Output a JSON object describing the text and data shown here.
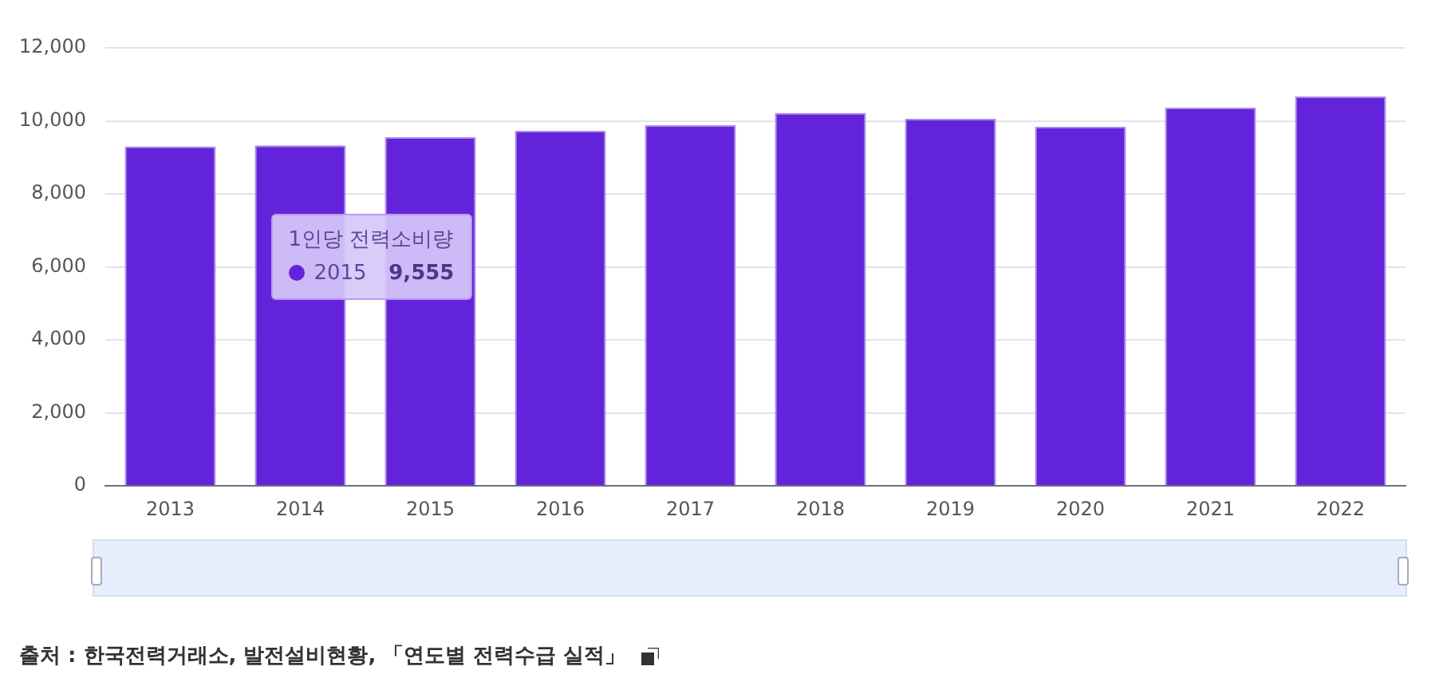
{
  "chart_data": {
    "type": "bar",
    "categories": [
      "2013",
      "2014",
      "2015",
      "2016",
      "2017",
      "2018",
      "2019",
      "2020",
      "2021",
      "2022"
    ],
    "series": [
      {
        "name": "1인당 전력소비량",
        "color": "#6323db",
        "values": [
          9300,
          9330,
          9555,
          9730,
          9880,
          10220,
          10060,
          9840,
          10360,
          10670
        ],
        "value_labels": [
          null,
          null,
          "9,555",
          null,
          null,
          null,
          null,
          null,
          null,
          null
        ]
      }
    ],
    "ylim": [
      0,
      12000
    ],
    "yticks": [
      0,
      {
        "value": 2000,
        "label": "2,000"
      },
      {
        "value": 4000,
        "label": "4,000"
      },
      {
        "value": 6000,
        "label": "6,000"
      },
      {
        "value": 8000,
        "label": "8,000"
      },
      {
        "value": 10000,
        "label": "10,000"
      },
      {
        "value": 12000,
        "label": "12,000"
      }
    ],
    "grid": "y",
    "legend": false,
    "annotations": [
      "출처 : 한국전력거래소, 발전설비현황, 「연도별 전력수급 실적」"
    ]
  }
}
